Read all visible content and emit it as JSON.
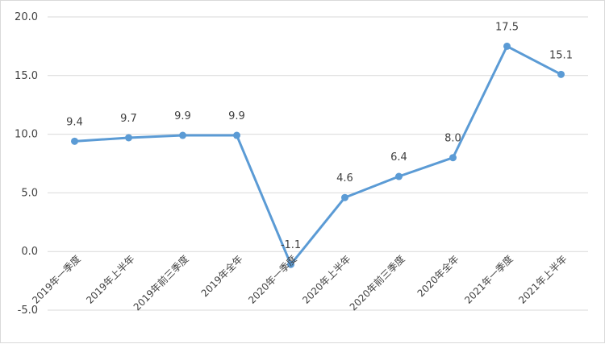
{
  "chart_data": {
    "type": "line",
    "categories": [
      "2019年一季度",
      "2019年上半年",
      "2019年前三季度",
      "2019年全年",
      "2020年一季度",
      "2020年上半年",
      "2020年前三季度",
      "2020年全年",
      "2021年一季度",
      "2021年上半年"
    ],
    "series": [
      {
        "values": [
          9.4,
          9.7,
          9.9,
          9.9,
          -1.1,
          4.6,
          6.4,
          8.0,
          17.5,
          15.1
        ]
      }
    ],
    "data_labels": [
      "9.4",
      "9.7",
      "9.9",
      "9.9",
      "-1.1",
      "4.6",
      "6.4",
      "8.0",
      "17.5",
      "15.1"
    ],
    "y_ticks": [
      "-5.0",
      "0.0",
      "5.0",
      "10.0",
      "15.0",
      "20.0"
    ],
    "ylim": [
      -5,
      20
    ],
    "title": "",
    "xlabel": "",
    "ylabel": "",
    "grid": true,
    "line_color": "#5b9bd5",
    "grid_color": "#d9d9d9"
  }
}
